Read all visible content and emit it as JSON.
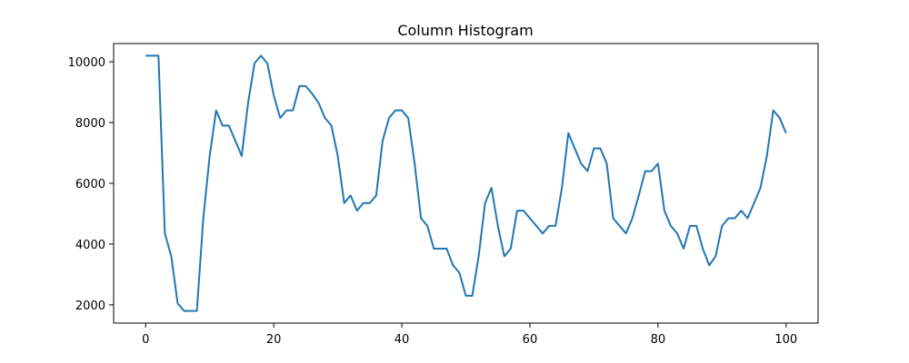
{
  "chart_data": {
    "type": "line",
    "title": "Column Histogram",
    "xlabel": "",
    "ylabel": "",
    "xlim": [
      -5,
      105
    ],
    "ylim": [
      1400,
      10600
    ],
    "grid": false,
    "line_color": "#1f77b4",
    "x_ticks": [
      0,
      20,
      40,
      60,
      80,
      100
    ],
    "y_ticks": [
      2000,
      4000,
      6000,
      8000,
      10000
    ],
    "series": [
      {
        "x": [
          0,
          1,
          2,
          3,
          4,
          5,
          6,
          7,
          8,
          9,
          10,
          11,
          12,
          13,
          14,
          15,
          16,
          17,
          18,
          19,
          20,
          21,
          22,
          23,
          24,
          25,
          26,
          27,
          28,
          29,
          30,
          31,
          32,
          33,
          34,
          35,
          36,
          37,
          38,
          39,
          40,
          41,
          42,
          43,
          44,
          45,
          46,
          47,
          48,
          49,
          50,
          51,
          52,
          53,
          54,
          55,
          56,
          57,
          58,
          59,
          60,
          61,
          62,
          63,
          64,
          65,
          66,
          67,
          68,
          69,
          70,
          71,
          72,
          73,
          74,
          75,
          76,
          77,
          78,
          79,
          80,
          81,
          82,
          83,
          84,
          85,
          86,
          87,
          88,
          89,
          90,
          91,
          92,
          93,
          94,
          95,
          96,
          97,
          98,
          99,
          100
        ],
        "values": [
          10200,
          10200,
          10200,
          4350,
          3600,
          2050,
          1800,
          1800,
          1800,
          4850,
          6900,
          8400,
          7900,
          7900,
          7400,
          6900,
          8650,
          9950,
          10200,
          9950,
          8900,
          8150,
          8400,
          8400,
          9200,
          9200,
          8950,
          8650,
          8150,
          7900,
          6900,
          5350,
          5600,
          5100,
          5350,
          5350,
          5600,
          7400,
          8150,
          8400,
          8400,
          8150,
          6650,
          4850,
          4600,
          3850,
          3850,
          3850,
          3300,
          3050,
          2300,
          2300,
          3600,
          5350,
          5850,
          4600,
          3600,
          3850,
          5100,
          5100,
          4850,
          4600,
          4350,
          4600,
          4600,
          5850,
          7650,
          7150,
          6650,
          6400,
          7150,
          7150,
          6650,
          4850,
          4600,
          4350,
          4850,
          5600,
          6400,
          6400,
          6650,
          5100,
          4600,
          4350,
          3850,
          4600,
          4600,
          3850,
          3300,
          3600,
          4600,
          4850,
          4850,
          5100,
          4850,
          5350,
          5850,
          6900,
          8400,
          8150,
          7650
        ]
      }
    ]
  }
}
